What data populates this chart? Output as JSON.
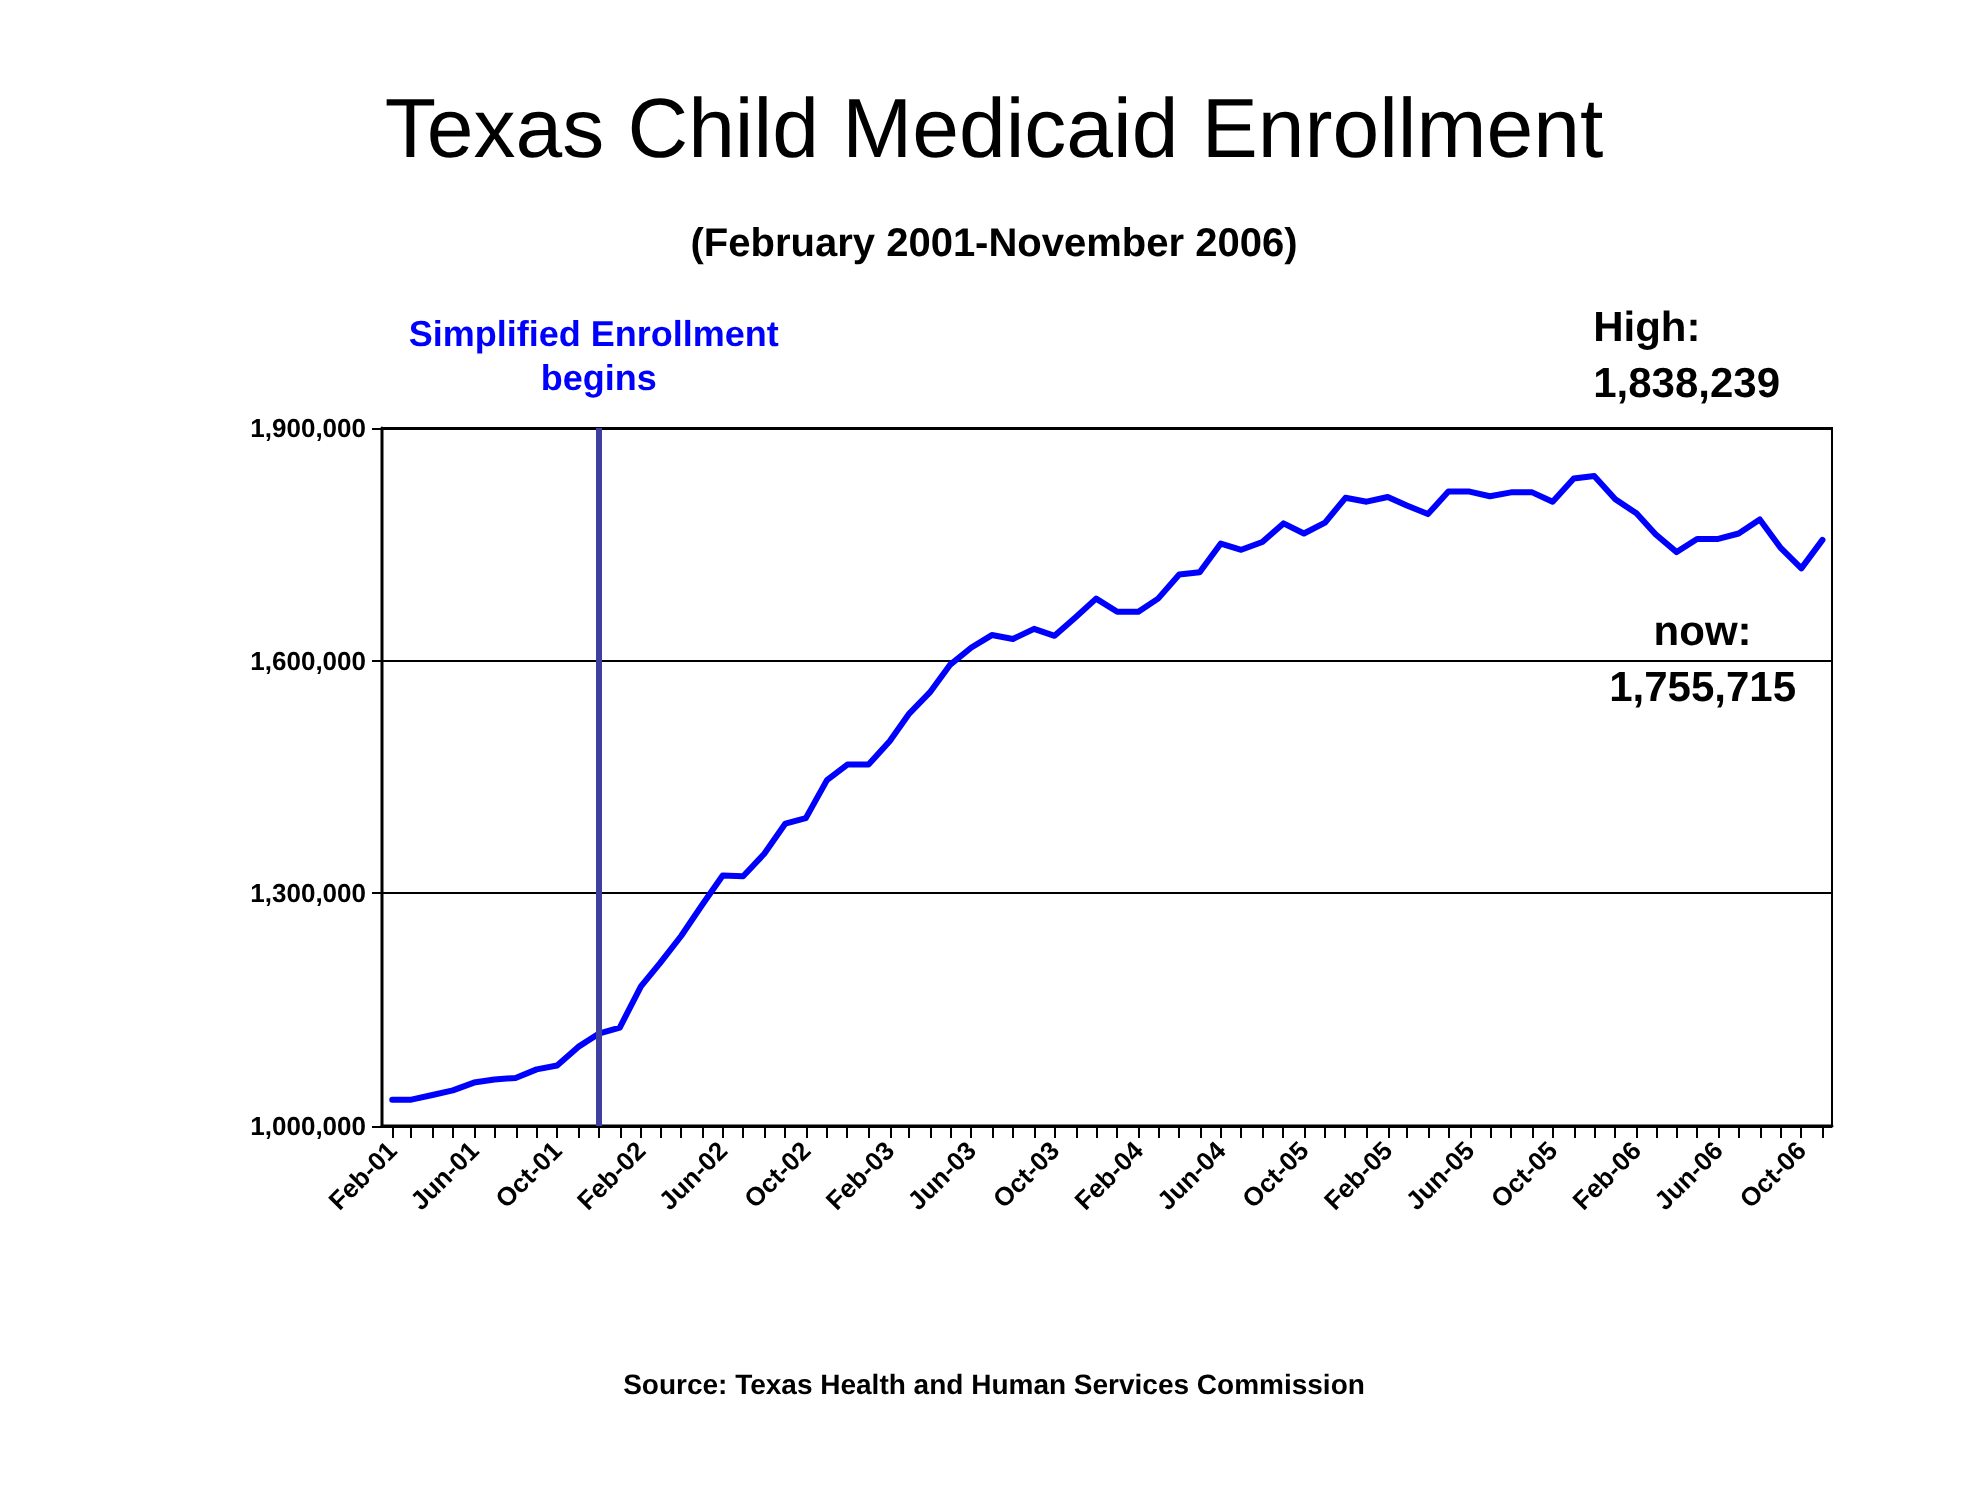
{
  "chart_data": {
    "type": "line",
    "title": "Texas Child Medicaid Enrollment",
    "subtitle": "(February 2001-November 2006)",
    "x": [
      "2001-02",
      "2001-03",
      "2001-04",
      "2001-05",
      "2001-06",
      "2001-07",
      "2001-08",
      "2001-09",
      "2001-10",
      "2001-11",
      "2001-12",
      "2002-01",
      "2002-02",
      "2002-03",
      "2002-04",
      "2002-05",
      "2002-06",
      "2002-07",
      "2002-08",
      "2002-09",
      "2002-10",
      "2002-11",
      "2002-12",
      "2003-01",
      "2003-02",
      "2003-03",
      "2003-04",
      "2003-05",
      "2003-06",
      "2003-07",
      "2003-08",
      "2003-09",
      "2003-10",
      "2003-11",
      "2003-12",
      "2004-01",
      "2004-02",
      "2004-03",
      "2004-04",
      "2004-05",
      "2004-06",
      "2004-07",
      "2004-08",
      "2004-09",
      "2004-10",
      "2004-11",
      "2004-12",
      "2005-01",
      "2005-02",
      "2005-03",
      "2005-04",
      "2005-05",
      "2005-06",
      "2005-07",
      "2005-08",
      "2005-09",
      "2005-10",
      "2005-11",
      "2005-12",
      "2006-01",
      "2006-02",
      "2006-03",
      "2006-04",
      "2006-05",
      "2006-06",
      "2006-07",
      "2006-08",
      "2006-09",
      "2006-10",
      "2006-11"
    ],
    "series": [
      {
        "color": "#0000ff",
        "values": [
          1034000,
          1034000,
          1040000,
          1046000,
          1056000,
          1060000,
          1062000,
          1073000,
          1078000,
          1102000,
          1119000,
          1127000,
          1180000,
          1210000,
          1245000,
          1284000,
          1323000,
          1322000,
          1351000,
          1390000,
          1397000,
          1446000,
          1466000,
          1466000,
          1496000,
          1531000,
          1559000,
          1595000,
          1617000,
          1633000,
          1628000,
          1641000,
          1632000,
          1656000,
          1680000,
          1663000,
          1663000,
          1680000,
          1711000,
          1714000,
          1751000,
          1743000,
          1753000,
          1777000,
          1764000,
          1778000,
          1810000,
          1805000,
          1811000,
          1800000,
          1789000,
          1818000,
          1818000,
          1812000,
          1817000,
          1817000,
          1805000,
          1835000,
          1838239,
          1808000,
          1790000,
          1763000,
          1740000,
          1757000,
          1757000,
          1764000,
          1782000,
          1745000,
          1719000,
          1755715
        ]
      }
    ],
    "xlim": [
      "2001-01-17",
      "2006-11-15"
    ],
    "xticks": [
      {
        "value": "2001-02",
        "label": "Feb-01"
      },
      {
        "value": "2001-03",
        "label": null
      },
      {
        "value": "2001-04",
        "label": null
      },
      {
        "value": "2001-05",
        "label": null
      },
      {
        "value": "2001-06",
        "label": "Jun-01"
      },
      {
        "value": "2001-07",
        "label": null
      },
      {
        "value": "2001-08",
        "label": null
      },
      {
        "value": "2001-09",
        "label": null
      },
      {
        "value": "2001-10",
        "label": "Oct-01"
      },
      {
        "value": "2001-11",
        "label": null
      },
      {
        "value": "2001-12",
        "label": null
      },
      {
        "value": "2002-01",
        "label": null
      },
      {
        "value": "2002-02",
        "label": "Feb-02"
      },
      {
        "value": "2002-03",
        "label": null
      },
      {
        "value": "2002-04",
        "label": null
      },
      {
        "value": "2002-05",
        "label": null
      },
      {
        "value": "2002-06",
        "label": "Jun-02"
      },
      {
        "value": "2002-07",
        "label": null
      },
      {
        "value": "2002-08",
        "label": null
      },
      {
        "value": "2002-09",
        "label": null
      },
      {
        "value": "2002-10",
        "label": "Oct-02"
      },
      {
        "value": "2002-11",
        "label": null
      },
      {
        "value": "2002-12",
        "label": null
      },
      {
        "value": "2003-01",
        "label": null
      },
      {
        "value": "2003-02",
        "label": "Feb-03"
      },
      {
        "value": "2003-03",
        "label": null
      },
      {
        "value": "2003-04",
        "label": null
      },
      {
        "value": "2003-05",
        "label": null
      },
      {
        "value": "2003-06",
        "label": "Jun-03"
      },
      {
        "value": "2003-07",
        "label": null
      },
      {
        "value": "2003-08",
        "label": null
      },
      {
        "value": "2003-09",
        "label": null
      },
      {
        "value": "2003-10",
        "label": "Oct-03"
      },
      {
        "value": "2003-11",
        "label": null
      },
      {
        "value": "2003-12",
        "label": null
      },
      {
        "value": "2004-01",
        "label": null
      },
      {
        "value": "2004-02",
        "label": "Feb-04"
      },
      {
        "value": "2004-03",
        "label": null
      },
      {
        "value": "2004-04",
        "label": null
      },
      {
        "value": "2004-05",
        "label": null
      },
      {
        "value": "2004-06",
        "label": "Jun-04"
      },
      {
        "value": "2004-07",
        "label": null
      },
      {
        "value": "2004-08",
        "label": null
      },
      {
        "value": "2004-09",
        "label": null
      },
      {
        "value": "2004-10",
        "label": "Oct-05"
      },
      {
        "value": "2004-11",
        "label": null
      },
      {
        "value": "2004-12",
        "label": null
      },
      {
        "value": "2005-01",
        "label": null
      },
      {
        "value": "2005-02",
        "label": "Feb-05"
      },
      {
        "value": "2005-03",
        "label": null
      },
      {
        "value": "2005-04",
        "label": null
      },
      {
        "value": "2005-05",
        "label": null
      },
      {
        "value": "2005-06",
        "label": "Jun-05"
      },
      {
        "value": "2005-07",
        "label": null
      },
      {
        "value": "2005-08",
        "label": null
      },
      {
        "value": "2005-09",
        "label": null
      },
      {
        "value": "2005-10",
        "label": "Oct-05"
      },
      {
        "value": "2005-11",
        "label": null
      },
      {
        "value": "2005-12",
        "label": null
      },
      {
        "value": "2006-01",
        "label": null
      },
      {
        "value": "2006-02",
        "label": "Feb-06"
      },
      {
        "value": "2006-03",
        "label": null
      },
      {
        "value": "2006-04",
        "label": null
      },
      {
        "value": "2006-05",
        "label": null
      },
      {
        "value": "2006-06",
        "label": "Jun-06"
      },
      {
        "value": "2006-07",
        "label": null
      },
      {
        "value": "2006-08",
        "label": null
      },
      {
        "value": "2006-09",
        "label": null
      },
      {
        "value": "2006-10",
        "label": "Oct-06"
      },
      {
        "value": "2006-11",
        "label": null
      }
    ],
    "ylim": [
      1000000,
      1900000
    ],
    "yticks": [
      {
        "value": 1000000,
        "label": "1,000,000"
      },
      {
        "value": 1300000,
        "label": "1,300,000"
      },
      {
        "value": 1600000,
        "label": "1,600,000"
      },
      {
        "value": 1900000,
        "label": "1,900,000"
      }
    ],
    "grid": "y",
    "marker": "none",
    "line_style": "solid",
    "ref_lines": [
      {
        "axis": "x",
        "value": "2001-12",
        "label": "Simplified Enrollment begins",
        "color": "#3f3f9f"
      }
    ],
    "annotations": [
      "High:\n1,838,239",
      "now:\n1,755,715",
      "Source: Texas Health and Human Services Commission"
    ]
  }
}
